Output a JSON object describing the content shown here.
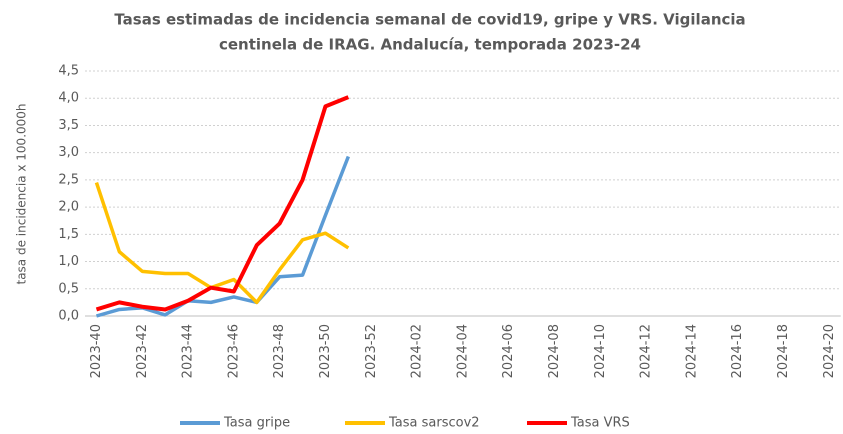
{
  "chart_data": {
    "type": "line",
    "title": [
      "Tasas estimadas de incidencia semanal de covid19, gripe y VRS. Vigilancia",
      "centinela de IRAG. Andalucía, temporada 2023-24"
    ],
    "y_label": "tasa de incidencia x 100.000h",
    "categories": [
      "2023-40",
      null,
      "2023-42",
      null,
      "2023-44",
      null,
      "2023-46",
      null,
      "2023-48",
      null,
      "2023-50",
      null,
      "2023-52",
      null,
      "2024-02",
      null,
      "2024-04",
      null,
      "2024-06",
      null,
      "2024-08",
      null,
      "2024-10",
      null,
      "2024-12",
      null,
      "2024-14",
      null,
      "2024-16",
      null,
      "2024-18",
      null,
      "2024-20"
    ],
    "series": [
      {
        "name": "Tasa gripe",
        "color": "#5b9bd5",
        "values": [
          0.0,
          0.12,
          0.15,
          0.02,
          0.28,
          0.25,
          0.35,
          0.25,
          0.72,
          0.75,
          1.85,
          2.93,
          null,
          null,
          null,
          null,
          null,
          null,
          null,
          null,
          null,
          null,
          null,
          null,
          null,
          null,
          null,
          null,
          null,
          null,
          null,
          null,
          null
        ]
      },
      {
        "name": "Tasa sarscov2",
        "color": "#ffc000",
        "values": [
          2.45,
          1.18,
          0.82,
          0.78,
          0.78,
          0.52,
          0.67,
          0.25,
          0.85,
          1.4,
          1.52,
          1.25,
          null,
          null,
          null,
          null,
          null,
          null,
          null,
          null,
          null,
          null,
          null,
          null,
          null,
          null,
          null,
          null,
          null,
          null,
          null,
          null,
          null
        ]
      },
      {
        "name": "Tasa VRS",
        "color": "#ff0000",
        "values": [
          0.12,
          0.25,
          0.17,
          0.12,
          0.28,
          0.52,
          0.45,
          1.3,
          1.7,
          2.5,
          3.85,
          4.02,
          null,
          null,
          null,
          null,
          null,
          null,
          null,
          null,
          null,
          null,
          null,
          null,
          null,
          null,
          null,
          null,
          null,
          null,
          null,
          null,
          null
        ]
      }
    ],
    "ylim": [
      0,
      4.5
    ],
    "yticks": [
      {
        "value": 0,
        "label": "0,0"
      },
      {
        "value": 0.5,
        "label": "0,5"
      },
      {
        "value": 1,
        "label": "1,0"
      },
      {
        "value": 1.5,
        "label": "1,5"
      },
      {
        "value": 2,
        "label": "2,0"
      },
      {
        "value": 2.5,
        "label": "2,5"
      },
      {
        "value": 3,
        "label": "3,0"
      },
      {
        "value": 3.5,
        "label": "3,5"
      },
      {
        "value": 4,
        "label": "4,0"
      },
      {
        "value": 4.5,
        "label": "4,5"
      }
    ],
    "grid": true,
    "legend": "bottom"
  }
}
